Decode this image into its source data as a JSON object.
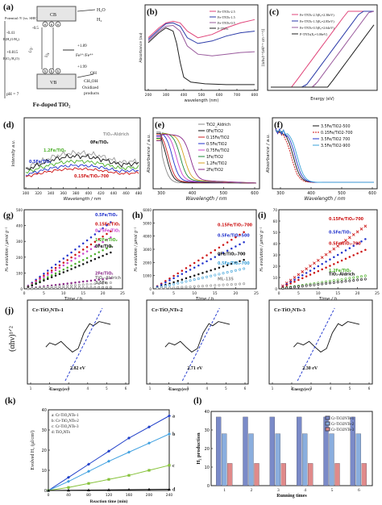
{
  "panels": {
    "a": "(a)",
    "b": "(b)",
    "c": "(c)",
    "d": "(d)",
    "e": "(e)",
    "f": "(f)",
    "g": "(g)",
    "h": "(h)",
    "i": "(i)",
    "j": "(j)",
    "k": "(k)",
    "l": "(l)"
  },
  "a": {
    "potential_label": "Potential /V (vs. SHE)",
    "cb": "CB",
    "vb": "VB",
    "h2o": "H₂O",
    "h2": "H₂",
    "fe": "Fe³⁺/Fe⁴⁺",
    "oh": "OH",
    "ch3oh": "CH₃OH",
    "oxidized": "Oxidized",
    "products": "products",
    "uv": "UV",
    "vis": "Vis",
    "ev1": "+1.89",
    "ev2": "+1.99",
    "ev3": "-0.5",
    "ph": "pH = 7",
    "caption": "Fe-doped TiO₂",
    "y_ticks": [
      "-0.41",
      "+0.815"
    ],
    "pair1": "E(H₂O/H₂)",
    "pair2": "E(O₂/H₂O)"
  },
  "chart_data": [
    {
      "panel": "b",
      "type": "line",
      "xlabel": "wavelength (nm)",
      "ylabel": "Absorbance (au)",
      "x_ticks": [
        "200",
        "300",
        "400",
        "500",
        "600",
        "700",
        "800"
      ],
      "series": [
        {
          "name": "Fe-TNTs-2.5",
          "color": "#e0457a",
          "x": [
            200,
            260,
            300,
            340,
            380,
            420,
            480,
            560,
            640,
            720,
            800
          ],
          "y": [
            0.62,
            0.74,
            0.8,
            0.82,
            0.8,
            0.7,
            0.62,
            0.66,
            0.74,
            0.8,
            0.84
          ]
        },
        {
          "name": "Fe-TNTs-1.5",
          "color": "#2b3aa8",
          "x": [
            200,
            260,
            300,
            340,
            380,
            420,
            480,
            560,
            640,
            720,
            800
          ],
          "y": [
            0.6,
            0.72,
            0.79,
            0.8,
            0.76,
            0.62,
            0.55,
            0.58,
            0.64,
            0.68,
            0.7
          ]
        },
        {
          "name": "Fe-TNTs-0.5",
          "color": "#9a5b9d",
          "x": [
            200,
            260,
            300,
            340,
            380,
            420,
            480,
            560,
            640,
            720,
            800
          ],
          "y": [
            0.58,
            0.7,
            0.76,
            0.77,
            0.7,
            0.52,
            0.42,
            0.4,
            0.42,
            0.44,
            0.45
          ]
        },
        {
          "name": "P-TNTs",
          "color": "#222222",
          "x": [
            200,
            260,
            300,
            340,
            360,
            380,
            400,
            440,
            520,
            640,
            800
          ],
          "y": [
            0.56,
            0.68,
            0.74,
            0.7,
            0.55,
            0.32,
            0.14,
            0.08,
            0.06,
            0.05,
            0.05
          ]
        }
      ]
    },
    {
      "panel": "c",
      "type": "line",
      "xlabel": "Energy (eV)",
      "ylabel": "[(αhν)¹ᐟ²(eV¹ᐟ² cm⁻¹ᐟ²)]",
      "series": [
        {
          "name": "Fe-TNTs-2.5(Eₑ=2.38eV)",
          "color": "#e0457a"
        },
        {
          "name": "Fe-TNTs-1.5(Eₑ=2.85eV)",
          "color": "#2b3aa8"
        },
        {
          "name": "Fe-TNTs-0.5(Eₑ=2.64eV)",
          "color": "#9a5b9d"
        },
        {
          "name": "P-TNTs(Eₑ=3.06eV)",
          "color": "#222222"
        }
      ]
    },
    {
      "panel": "d",
      "type": "line",
      "xlabel": "Wavelength / nm",
      "ylabel": "Intensity a.u.",
      "x_ticks": [
        "300",
        "320",
        "340",
        "360",
        "380",
        "400",
        "420",
        "440",
        "460",
        "480"
      ],
      "series": [
        {
          "name": "TiO₂-Aldrich",
          "color": "#9a9a9a"
        },
        {
          "name": "0Fe/TiO₂",
          "color": "#111111"
        },
        {
          "name": "1.2Fe/TiO₂",
          "color": "#4caf2a"
        },
        {
          "name": "0.5Fe/TiO₂",
          "color": "#2233cc"
        },
        {
          "name": "0.15Fe/TiO₂-700",
          "color": "#cc1111"
        }
      ]
    },
    {
      "panel": "e",
      "type": "line",
      "xlabel": "Wavelength / nm",
      "ylabel": "Absorbance / a.u.",
      "x_ticks": [
        "300",
        "400",
        "500",
        "600"
      ],
      "series": [
        {
          "name": "TiO2_Aldrich",
          "color": "#888888"
        },
        {
          "name": "0Fe/TiO2",
          "color": "#111111"
        },
        {
          "name": "0.15Fe/TiO2",
          "color": "#cc2222"
        },
        {
          "name": "0.5Fe/TiO2",
          "color": "#2233cc"
        },
        {
          "name": "0.75Fe/TiO2",
          "color": "#cc44cc"
        },
        {
          "name": "1Fe/TiO2",
          "color": "#1b8a3a"
        },
        {
          "name": "1.2Fe/TiO2",
          "color": "#d6a020"
        },
        {
          "name": "2Fe/TiO2",
          "color": "#8a2a8a"
        }
      ]
    },
    {
      "panel": "f",
      "type": "line",
      "xlabel": "Wavelength / nm",
      "ylabel": "Absorbance / a.u.",
      "x_ticks": [
        "300",
        "400",
        "500",
        "600"
      ],
      "series": [
        {
          "name": "3.5Fe/TiO2-500",
          "color": "#111111"
        },
        {
          "name": "0.15Fe/TiO2-700",
          "color": "#cc1111"
        },
        {
          "name": "3.5Fe/TiO2 700",
          "color": "#2233cc"
        },
        {
          "name": "3.5Fe/TiO2-900",
          "color": "#3aa0d8"
        }
      ]
    },
    {
      "panel": "g",
      "type": "scatter",
      "xlabel": "Time / h",
      "ylabel": "H₂ evolution / μmol g⁻¹",
      "x_ticks": [
        "0",
        "5",
        "10",
        "15",
        "20",
        "25"
      ],
      "y_ticks": [
        "0",
        "100",
        "200",
        "300",
        "400",
        "500"
      ],
      "series": [
        {
          "name": "0.5Fe/TiO₂",
          "color": "#2233cc",
          "end_y": 440
        },
        {
          "name": "0.15Fe/TiO₂",
          "color": "#cc1111",
          "end_y": 380
        },
        {
          "name": "0.75Fe/TiO₂",
          "color": "#cc44cc",
          "end_y": 340
        },
        {
          "name": "1.2Fe/TiO₂",
          "color": "#4caf2a",
          "end_y": 280
        },
        {
          "name": "0Fe/TiO₂",
          "color": "#111111",
          "end_y": 240
        },
        {
          "name": "2Fe/TiO₂",
          "color": "#8a2a8a",
          "end_y": 70
        },
        {
          "name": "TiO₂-Aldrich",
          "color": "#888888",
          "end_y": 40
        },
        {
          "name": "3.5Fe",
          "color": "#666666",
          "end_y": 10
        }
      ]
    },
    {
      "panel": "h",
      "type": "scatter",
      "xlabel": "Time / h",
      "ylabel": "H₂ evolution / μmol g⁻¹",
      "x_ticks": [
        "0",
        "5",
        "10",
        "15",
        "20",
        "25"
      ],
      "y_ticks": [
        "0",
        "1000",
        "2000",
        "3000",
        "4000",
        "5000",
        "6000"
      ],
      "series": [
        {
          "name": "0.15Fe/TiO₂-700",
          "color": "#cc1111",
          "end_y": 4500
        },
        {
          "name": "0.5Fe/TiO₂-500",
          "color": "#2233cc",
          "end_y": 3700
        },
        {
          "name": "0Fe/TiO₂-700",
          "color": "#111111",
          "end_y": 2300
        },
        {
          "name": "0.5Fe/TiO₂-700",
          "color": "#3aa0d8",
          "end_y": 1600
        },
        {
          "name": "ML-135",
          "color": "#888888",
          "end_y": 400
        }
      ]
    },
    {
      "panel": "i",
      "type": "scatter",
      "xlabel": "Time / h",
      "ylabel": "H₂ evolution / μmol g⁻¹",
      "x_ticks": [
        "0",
        "5",
        "10",
        "15",
        "20",
        "25"
      ],
      "y_ticks": [
        "0",
        "10",
        "20",
        "30",
        "40",
        "50",
        "60",
        "70"
      ],
      "series": [
        {
          "name": "0.15Fe/TiO₂-700",
          "color": "#cc1111",
          "end_y": 58
        },
        {
          "name": "0.5Fe/TiO₂",
          "color": "#2233cc",
          "end_y": 46
        },
        {
          "name": "0.5Fe/TiO₂-700",
          "color": "#cc1111",
          "end_y": 36
        },
        {
          "name": "1.2Fe/TiO₂",
          "color": "#4caf2a",
          "end_y": 12
        },
        {
          "name": "TiO₂-Aldrich",
          "color": "#111111",
          "end_y": 9
        }
      ]
    },
    {
      "panel": "j",
      "type": "line",
      "ylabel": "(αhν)¹ᐟ²",
      "subplots": [
        {
          "title": "Cr-TiO₂NTs-1",
          "bandgap": "2.82 eV",
          "xlabel": "Energy(ev)",
          "x_ticks": [
            "1",
            "2",
            "3",
            "4",
            "5",
            "6"
          ]
        },
        {
          "title": "Cr-TiO₂NTs-2",
          "bandgap": "2.71 eV",
          "xlabel": "Energy(ev)",
          "x_ticks": [
            "1",
            "2",
            "3",
            "4",
            "5",
            "6"
          ]
        },
        {
          "title": "Cr-TiO₂NTs-3",
          "bandgap": "2.30 eV",
          "xlabel": "Energy(ev)",
          "x_ticks": [
            "1",
            "2",
            "3",
            "4",
            "5",
            "6"
          ]
        }
      ]
    },
    {
      "panel": "k",
      "type": "line",
      "xlabel": "Reaction time (min)",
      "ylabel": "Evolved H₂ (μl/cm²)",
      "x": [
        0,
        40,
        80,
        120,
        160,
        200,
        240
      ],
      "ylim": [
        0,
        40
      ],
      "y_ticks": [
        "0",
        "10",
        "20",
        "30",
        "40"
      ],
      "legend": [
        "a: Cr-TiO₂NTs-1",
        "b: Cr-TiO₂NTs-2",
        "c: Cr-TiO₂NTs-3",
        "d: TiO₂NTs"
      ],
      "series": [
        {
          "name": "a",
          "color": "#1f3fc9",
          "values": [
            0,
            6.5,
            13,
            19.5,
            26,
            31.5,
            37
          ]
        },
        {
          "name": "b",
          "color": "#3fa0e0",
          "values": [
            0,
            4.5,
            9.5,
            14.5,
            19,
            23.5,
            28
          ]
        },
        {
          "name": "c",
          "color": "#86c23a",
          "values": [
            0,
            1.5,
            3.5,
            5.5,
            7.5,
            10,
            12.5
          ]
        },
        {
          "name": "d",
          "color": "#111111",
          "values": [
            0,
            0.1,
            0.2,
            0.3,
            0.4,
            0.5,
            0.6
          ]
        }
      ]
    },
    {
      "panel": "l",
      "type": "bar",
      "xlabel": "Running times",
      "ylabel": "H₂ production",
      "categories": [
        "1",
        "2",
        "3",
        "4",
        "5",
        "6"
      ],
      "ylim": [
        0,
        40
      ],
      "y_ticks": [
        "0",
        "10",
        "20",
        "30",
        "40"
      ],
      "legend": [
        "Cr-TiO2NTs-1",
        "Cr-TiO2NTs-2",
        "Cr-TiO2NTs-3"
      ],
      "series": [
        {
          "name": "Cr-TiO2NTs-1",
          "color": "#7a8ac8",
          "values": [
            37,
            37,
            37,
            37,
            37,
            37
          ]
        },
        {
          "name": "Cr-TiO2NTs-2",
          "color": "#8aaede",
          "values": [
            28,
            28,
            28,
            28,
            28,
            28
          ]
        },
        {
          "name": "Cr-TiO2NTs-3",
          "color": "#e08a8a",
          "values": [
            12,
            12,
            12,
            12,
            12,
            12
          ]
        }
      ]
    }
  ]
}
